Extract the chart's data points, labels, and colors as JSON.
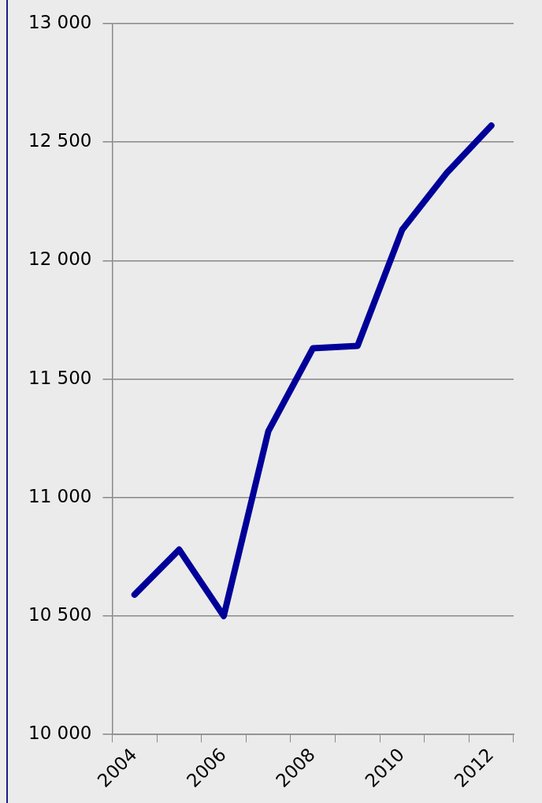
{
  "chart_data": {
    "type": "line",
    "categories": [
      "2004",
      null,
      "2006",
      null,
      "2008",
      null,
      "2010",
      null,
      "2012"
    ],
    "series": [
      {
        "color": "#000099",
        "values": [
          10590,
          10780,
          10500,
          11280,
          11630,
          11640,
          12130,
          12370,
          12570
        ]
      }
    ],
    "ylim": [
      10000,
      13000
    ],
    "yticks": [
      {
        "value": 10000,
        "label": "10 000"
      },
      {
        "value": 10500,
        "label": "10 500"
      },
      {
        "value": 11000,
        "label": "11 000"
      },
      {
        "value": 11500,
        "label": "11 500"
      },
      {
        "value": 12000,
        "label": "12 000"
      },
      {
        "value": 12500,
        "label": "12 500"
      },
      {
        "value": 13000,
        "label": "13 000"
      }
    ],
    "grid": "y",
    "legend": false,
    "marker": "none",
    "line_style": "solid"
  }
}
